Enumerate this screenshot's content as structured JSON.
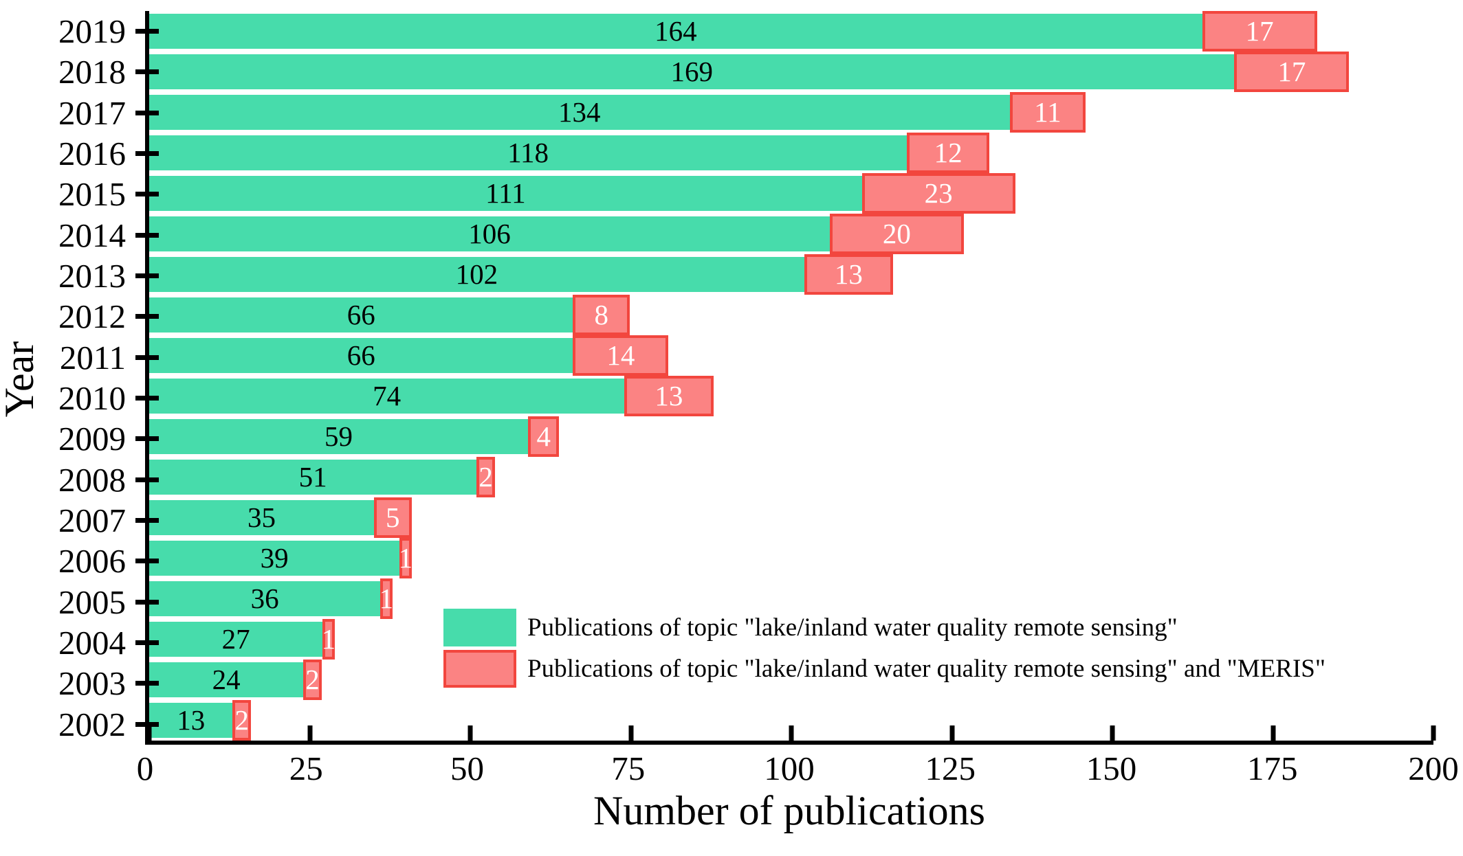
{
  "chart_data": {
    "type": "bar",
    "orientation": "horizontal-stacked",
    "title": "",
    "xlabel": "Number of publications",
    "ylabel": "Year",
    "xlim": [
      0,
      200
    ],
    "x_ticks": [
      "0",
      "25",
      "50",
      "75",
      "100",
      "125",
      "150",
      "175",
      "200"
    ],
    "grid": false,
    "legend_position": "inside-lower-right",
    "categories": [
      "2019",
      "2018",
      "2017",
      "2016",
      "2015",
      "2014",
      "2013",
      "2012",
      "2011",
      "2010",
      "2009",
      "2008",
      "2007",
      "2006",
      "2005",
      "2004",
      "2003",
      "2002"
    ],
    "series": [
      {
        "name": "Publications of topic \"lake/inland water quality remote sensing\"",
        "color": "#47dcab",
        "label_color": "#000000",
        "values": [
          164,
          169,
          134,
          118,
          111,
          106,
          102,
          66,
          66,
          74,
          59,
          51,
          35,
          39,
          36,
          27,
          24,
          13
        ]
      },
      {
        "name": "Publications of topic \"lake/inland water quality remote sensing\" and \"MERIS\"",
        "color": "#fb8383",
        "border_color": "#f2463e",
        "label_color": "#ffffff",
        "values": [
          17,
          17,
          11,
          12,
          23,
          20,
          13,
          8,
          14,
          13,
          4,
          2,
          5,
          1,
          1,
          1,
          2,
          2
        ]
      }
    ]
  },
  "colors": {
    "axis": "#000000",
    "background": "#ffffff"
  }
}
